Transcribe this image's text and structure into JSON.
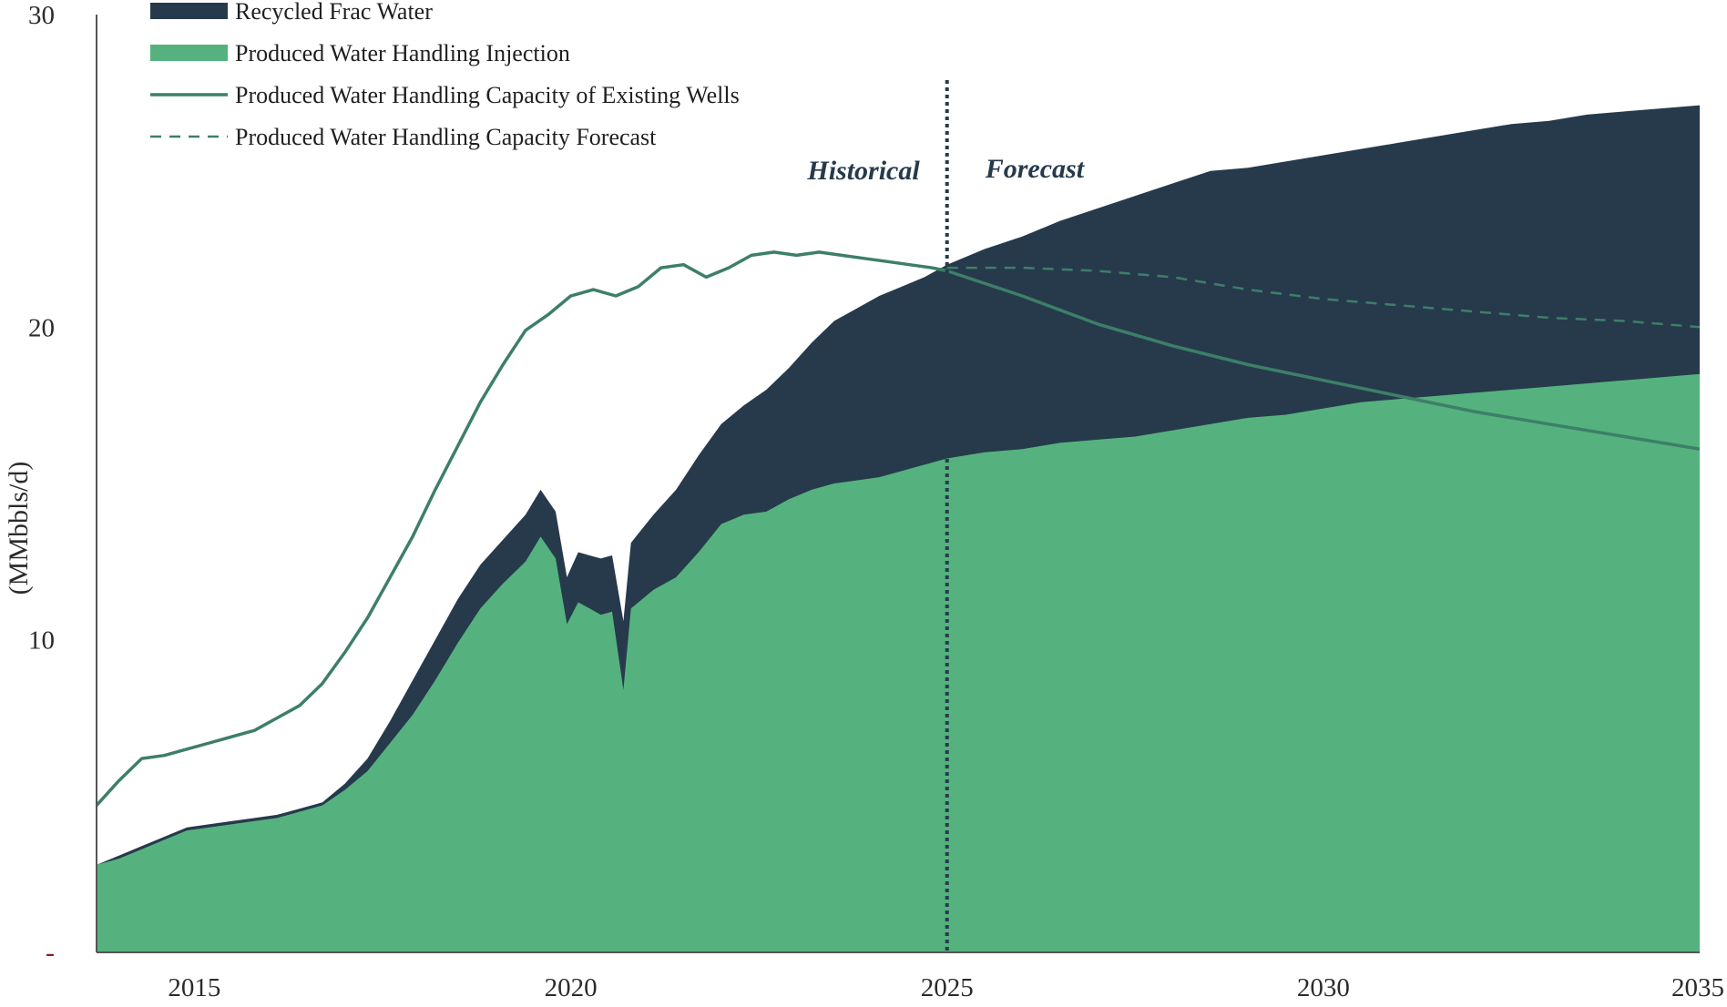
{
  "chart_data": {
    "type": "area",
    "title": "",
    "xlabel": "",
    "ylabel": "(MMbbls/d)",
    "xlim": [
      2013.7,
      2035
    ],
    "ylim": [
      0,
      30
    ],
    "x_ticks": [
      2015,
      2020,
      2025,
      2030,
      2035
    ],
    "x_tick_labels": [
      "2015",
      "2020",
      "2025",
      "2030",
      "2035"
    ],
    "y_ticks": [
      0,
      10,
      20,
      30
    ],
    "y_tick_labels": [
      "-",
      "10",
      "20",
      "30"
    ],
    "grid": false,
    "legend_position": "top-left",
    "colors": {
      "recycled": "#263a4c",
      "injection": "#55b27e",
      "capacity_line": "#3d7f68",
      "divider": "#263a4c"
    },
    "annotations": {
      "historical": "Historical",
      "forecast": "Forecast",
      "divider_x": 2025.0
    },
    "series": [
      {
        "name": "Produced Water Handling Injection",
        "kind": "area",
        "x": [
          2013.7,
          2014.0,
          2014.3,
          2014.6,
          2014.9,
          2015.2,
          2015.5,
          2015.8,
          2016.1,
          2016.4,
          2016.7,
          2017.0,
          2017.3,
          2017.6,
          2017.9,
          2018.2,
          2018.5,
          2018.8,
          2019.1,
          2019.4,
          2019.6,
          2019.8,
          2019.95,
          2020.1,
          2020.25,
          2020.4,
          2020.55,
          2020.7,
          2020.8,
          2020.9,
          2021.1,
          2021.4,
          2021.7,
          2022.0,
          2022.3,
          2022.6,
          2022.9,
          2023.2,
          2023.5,
          2023.8,
          2024.1,
          2024.4,
          2024.7,
          2025.0,
          2025.5,
          2026.0,
          2026.5,
          2027.0,
          2027.5,
          2028.0,
          2028.5,
          2029.0,
          2029.5,
          2030.0,
          2030.5,
          2031.0,
          2031.5,
          2032.0,
          2032.5,
          2033.0,
          2033.5,
          2034.0,
          2034.5,
          2035.0
        ],
        "values": [
          2.8,
          3.0,
          3.3,
          3.6,
          3.9,
          4.0,
          4.1,
          4.2,
          4.3,
          4.5,
          4.7,
          5.2,
          5.8,
          6.7,
          7.6,
          8.7,
          9.9,
          11.0,
          11.8,
          12.5,
          13.3,
          12.6,
          10.5,
          11.2,
          11.0,
          10.8,
          10.9,
          8.4,
          11.0,
          11.2,
          11.6,
          12.0,
          12.8,
          13.7,
          14.0,
          14.1,
          14.5,
          14.8,
          15.0,
          15.1,
          15.2,
          15.4,
          15.6,
          15.8,
          16.0,
          16.1,
          16.3,
          16.4,
          16.5,
          16.7,
          16.9,
          17.1,
          17.2,
          17.4,
          17.6,
          17.7,
          17.8,
          17.9,
          18.0,
          18.1,
          18.2,
          18.3,
          18.4,
          18.5
        ]
      },
      {
        "name": "Recycled Frac Water",
        "kind": "stacked_area_top",
        "x": [
          2013.7,
          2014.0,
          2014.3,
          2014.6,
          2014.9,
          2015.2,
          2015.5,
          2015.8,
          2016.1,
          2016.4,
          2016.7,
          2017.0,
          2017.3,
          2017.6,
          2017.9,
          2018.2,
          2018.5,
          2018.8,
          2019.1,
          2019.4,
          2019.6,
          2019.8,
          2019.95,
          2020.1,
          2020.25,
          2020.4,
          2020.55,
          2020.7,
          2020.8,
          2020.9,
          2021.1,
          2021.4,
          2021.7,
          2022.0,
          2022.3,
          2022.6,
          2022.9,
          2023.2,
          2023.5,
          2023.8,
          2024.1,
          2024.4,
          2024.7,
          2025.0,
          2025.5,
          2026.0,
          2026.5,
          2027.0,
          2027.5,
          2028.0,
          2028.5,
          2029.0,
          2029.5,
          2030.0,
          2030.5,
          2031.0,
          2031.5,
          2032.0,
          2032.5,
          2033.0,
          2033.5,
          2034.0,
          2034.5,
          2035.0
        ],
        "values": [
          2.8,
          3.1,
          3.4,
          3.7,
          4.0,
          4.1,
          4.2,
          4.3,
          4.4,
          4.6,
          4.8,
          5.4,
          6.2,
          7.4,
          8.7,
          10.0,
          11.3,
          12.4,
          13.2,
          14.0,
          14.8,
          14.1,
          12.0,
          12.8,
          12.7,
          12.6,
          12.7,
          10.6,
          13.1,
          13.4,
          14.0,
          14.8,
          15.9,
          16.9,
          17.5,
          18.0,
          18.7,
          19.5,
          20.2,
          20.6,
          21.0,
          21.3,
          21.6,
          22.0,
          22.5,
          22.9,
          23.4,
          23.8,
          24.2,
          24.6,
          25.0,
          25.1,
          25.3,
          25.5,
          25.7,
          25.9,
          26.1,
          26.3,
          26.5,
          26.6,
          26.8,
          26.9,
          27.0,
          27.1
        ]
      },
      {
        "name": "Produced Water Handling Capacity of Existing Wells",
        "kind": "line_solid",
        "x": [
          2013.7,
          2014.0,
          2014.3,
          2014.6,
          2014.9,
          2015.2,
          2015.5,
          2015.8,
          2016.1,
          2016.4,
          2016.7,
          2017.0,
          2017.3,
          2017.6,
          2017.9,
          2018.2,
          2018.5,
          2018.8,
          2019.1,
          2019.4,
          2019.7,
          2020.0,
          2020.3,
          2020.6,
          2020.9,
          2021.2,
          2021.5,
          2021.8,
          2022.1,
          2022.4,
          2022.7,
          2023.0,
          2023.3,
          2023.6,
          2023.9,
          2024.2,
          2024.5,
          2024.8,
          2025.0,
          2026.0,
          2027.0,
          2028.0,
          2029.0,
          2030.0,
          2031.0,
          2032.0,
          2033.0,
          2034.0,
          2035.0
        ],
        "values": [
          4.7,
          5.5,
          6.2,
          6.3,
          6.5,
          6.7,
          6.9,
          7.1,
          7.5,
          7.9,
          8.6,
          9.6,
          10.7,
          12.0,
          13.3,
          14.8,
          16.2,
          17.6,
          18.8,
          19.9,
          20.4,
          21.0,
          21.2,
          21.0,
          21.3,
          21.9,
          22.0,
          21.6,
          21.9,
          22.3,
          22.4,
          22.3,
          22.4,
          22.3,
          22.2,
          22.1,
          22.0,
          21.9,
          21.8,
          21.0,
          20.1,
          19.4,
          18.8,
          18.3,
          17.8,
          17.3,
          16.9,
          16.5,
          16.1
        ]
      },
      {
        "name": "Produced Water Handling Capacity Forecast",
        "kind": "line_dashed",
        "x": [
          2025.0,
          2026.0,
          2027.0,
          2028.0,
          2029.0,
          2030.0,
          2031.0,
          2032.0,
          2033.0,
          2034.0,
          2035.0
        ],
        "values": [
          21.9,
          21.9,
          21.8,
          21.6,
          21.2,
          20.9,
          20.7,
          20.5,
          20.3,
          20.2,
          20.0
        ]
      }
    ],
    "legend": [
      {
        "label": "Recycled Frac Water",
        "marker": "fill-dark"
      },
      {
        "label": "Produced Water Handling Injection",
        "marker": "fill-green"
      },
      {
        "label": "Produced Water Handling Capacity of Existing Wells",
        "marker": "line-solid"
      },
      {
        "label": "Produced Water Handling Capacity Forecast",
        "marker": "line-dashed"
      }
    ]
  }
}
